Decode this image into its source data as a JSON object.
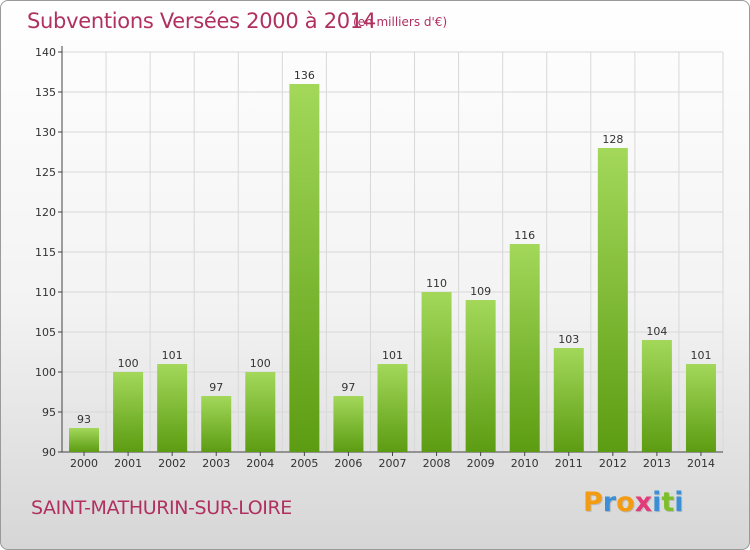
{
  "header": {
    "title": "Subventions Versées 2000 à 2014",
    "subtitle": "(en milliers d'€)"
  },
  "footer": {
    "place": "SAINT-MATHURIN-SUR-LOIRE",
    "logo_text": "Proxiti",
    "logo_letters": [
      {
        "ch": "P",
        "color": "#f39c12"
      },
      {
        "ch": "r",
        "color": "#3a8fd6"
      },
      {
        "ch": "o",
        "color": "#f39c12"
      },
      {
        "ch": "x",
        "color": "#e23b7a"
      },
      {
        "ch": "i",
        "color": "#3a8fd6"
      },
      {
        "ch": "t",
        "color": "#7cbf2a"
      },
      {
        "ch": "i",
        "color": "#3a8fd6"
      }
    ]
  },
  "colors": {
    "bar_top": "#9ed352",
    "bar_bottom": "#5e9f14",
    "accent": "#b0305f",
    "grid": "#d8d8d8"
  },
  "chart_data": {
    "type": "bar",
    "title": "Subventions Versées 2000 à 2014",
    "subtitle": "(en milliers d'€)",
    "xlabel": "",
    "ylabel": "",
    "categories": [
      "2000",
      "2001",
      "2002",
      "2003",
      "2004",
      "2005",
      "2006",
      "2007",
      "2008",
      "2009",
      "2010",
      "2011",
      "2012",
      "2013",
      "2014"
    ],
    "values": [
      93,
      100,
      101,
      97,
      100,
      136,
      97,
      101,
      110,
      109,
      116,
      103,
      128,
      104,
      101
    ],
    "ylim": [
      90,
      140
    ],
    "yticks": [
      90,
      95,
      100,
      105,
      110,
      115,
      120,
      125,
      130,
      135,
      140
    ],
    "grid": true
  }
}
